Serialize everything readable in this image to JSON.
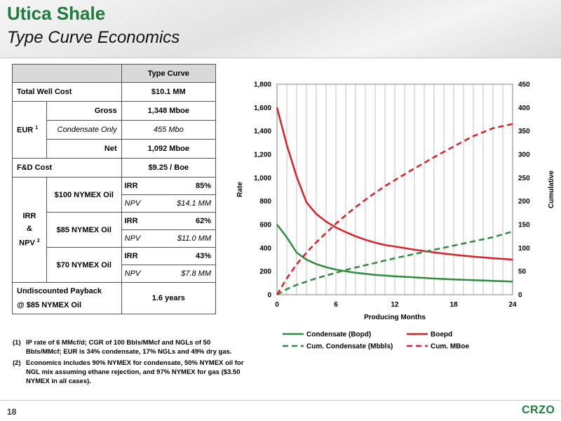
{
  "header": {
    "title": "Utica Shale",
    "subtitle": "Type Curve Economics"
  },
  "table": {
    "col_header": "Type Curve",
    "total_well_cost": {
      "label": "Total Well Cost",
      "value": "$10.1 MM"
    },
    "eur": {
      "label": "EUR",
      "footnote": "1",
      "rows": [
        {
          "label": "Gross",
          "value": "1,348 Mboe"
        },
        {
          "label": "Condensate Only",
          "value": "455 Mbo"
        },
        {
          "label": "Net",
          "value": "1,092 Mboe"
        }
      ]
    },
    "fd_cost": {
      "label": "F&D Cost",
      "value": "$9.25 / Boe"
    },
    "irr_npv": {
      "label_line1": "IRR",
      "label_line2": "&",
      "label_line3": "NPV",
      "footnote": "2",
      "irr_label": "IRR",
      "npv_label": "NPV",
      "rows": [
        {
          "scenario": "$100 NYMEX Oil",
          "irr": "85%",
          "npv": "$14.1 MM"
        },
        {
          "scenario": "$85 NYMEX Oil",
          "irr": "62%",
          "npv": "$11.0 MM"
        },
        {
          "scenario": "$70 NYMEX Oil",
          "irr": "43%",
          "npv": "$7.8 MM"
        }
      ]
    },
    "payback": {
      "label_line1": "Undiscounted Payback",
      "label_line2": "@ $85 NYMEX Oil",
      "value": "1.6 years"
    }
  },
  "footnotes": [
    {
      "num": "(1)",
      "text": "IP rate of 6 MMcf/d; CGR of 100 Bbls/MMcf and NGLs of 50 Bbls/MMcf; EUR is 34% condensate, 17% NGLs and 49% dry gas."
    },
    {
      "num": "(2)",
      "text": "Economics includes 90% NYMEX for condensate, 50% NYMEX oil for NGL mix assuming ethane rejection, and 97% NYMEX for gas ($3.50 NYMEX in all cases)."
    }
  ],
  "chart_data": {
    "type": "line",
    "xlabel": "Producing Months",
    "ylabel": "Rate",
    "y2label": "Cumulative",
    "xlim": [
      0,
      24
    ],
    "ylim": [
      0,
      1800
    ],
    "y2lim": [
      0,
      450
    ],
    "xticks": [
      0,
      6,
      12,
      18,
      24
    ],
    "yticks": [
      0,
      200,
      400,
      600,
      800,
      1000,
      1200,
      1400,
      1600,
      1800
    ],
    "y2ticks": [
      0,
      50,
      100,
      150,
      200,
      250,
      300,
      350,
      400,
      450
    ],
    "grid": "vertical",
    "legend_position": "bottom",
    "colors": {
      "green": "#2e8b3e",
      "red": "#dc1f26"
    },
    "series": [
      {
        "name": "Condensate (Bopd)",
        "axis": "left",
        "style": "solid",
        "color": "#2e8b3e",
        "x": [
          0,
          1,
          2,
          3,
          4,
          5,
          6,
          7,
          8,
          9,
          10,
          11,
          12,
          14,
          16,
          18,
          20,
          22,
          24
        ],
        "values": [
          600,
          490,
          360,
          300,
          262,
          235,
          215,
          200,
          188,
          178,
          170,
          163,
          158,
          148,
          138,
          130,
          124,
          118,
          113
        ]
      },
      {
        "name": "Boepd",
        "axis": "left",
        "style": "solid",
        "color": "#dc1f26",
        "x": [
          0,
          1,
          2,
          3,
          4,
          5,
          6,
          7,
          8,
          9,
          10,
          11,
          12,
          14,
          16,
          18,
          20,
          22,
          24
        ],
        "values": [
          1600,
          1280,
          1010,
          790,
          690,
          625,
          575,
          535,
          500,
          470,
          445,
          425,
          412,
          385,
          362,
          342,
          325,
          312,
          300
        ]
      },
      {
        "name": "Cum. Condensate (Mbbls)",
        "axis": "right",
        "style": "dashed",
        "color": "#2e8b3e",
        "x": [
          0,
          1,
          2,
          3,
          4,
          5,
          6,
          7,
          8,
          9,
          10,
          11,
          12,
          14,
          16,
          18,
          20,
          22,
          24
        ],
        "values": [
          0,
          12,
          21,
          28,
          35,
          41,
          47,
          53,
          58,
          63,
          68,
          73,
          78,
          87,
          96,
          105,
          114,
          123,
          135
        ]
      },
      {
        "name": "Cum. MBoe",
        "axis": "right",
        "style": "dashed",
        "color": "#dc1f26",
        "x": [
          0,
          1,
          2,
          3,
          4,
          5,
          6,
          7,
          8,
          9,
          10,
          11,
          12,
          14,
          16,
          18,
          20,
          22,
          24
        ],
        "values": [
          0,
          35,
          65,
          90,
          112,
          132,
          152,
          170,
          187,
          203,
          218,
          232,
          245,
          270,
          294,
          317,
          339,
          356,
          365
        ]
      }
    ]
  },
  "footer": {
    "page_number": "18",
    "logo": "CRZO"
  }
}
